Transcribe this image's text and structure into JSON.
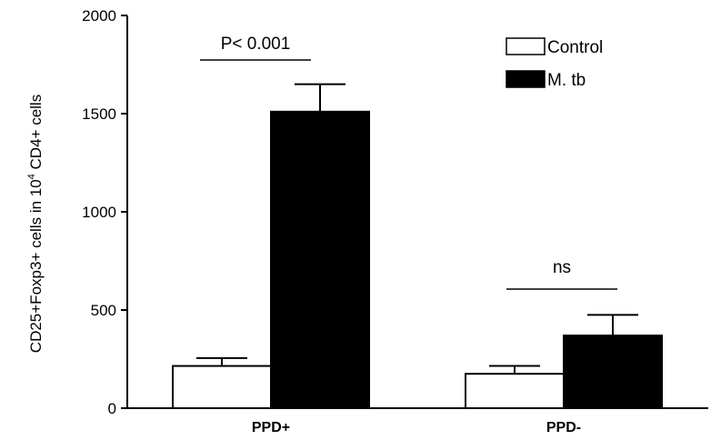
{
  "chart_data": {
    "type": "bar",
    "categories": [
      "PPD+",
      "PPD-"
    ],
    "series": [
      {
        "name": "Control",
        "values": [
          215,
          175
        ],
        "errors": [
          40,
          40
        ],
        "color": "#ffffff"
      },
      {
        "name": "M. tb",
        "values": [
          1510,
          370
        ],
        "errors": [
          140,
          105
        ],
        "color": "#000000"
      }
    ],
    "ylabel": {
      "before": "CD25+Foxp3+ cells in 10",
      "sup": "4",
      "after": " CD4+ cells"
    },
    "ylim": [
      0,
      2000
    ],
    "yticks": [
      0,
      500,
      1000,
      1500,
      2000
    ],
    "legend": "top-right",
    "grid": false,
    "annotations": [
      {
        "text": "P< 0.001",
        "category": "PPD+"
      },
      {
        "text": "ns",
        "category": "PPD-"
      }
    ]
  }
}
